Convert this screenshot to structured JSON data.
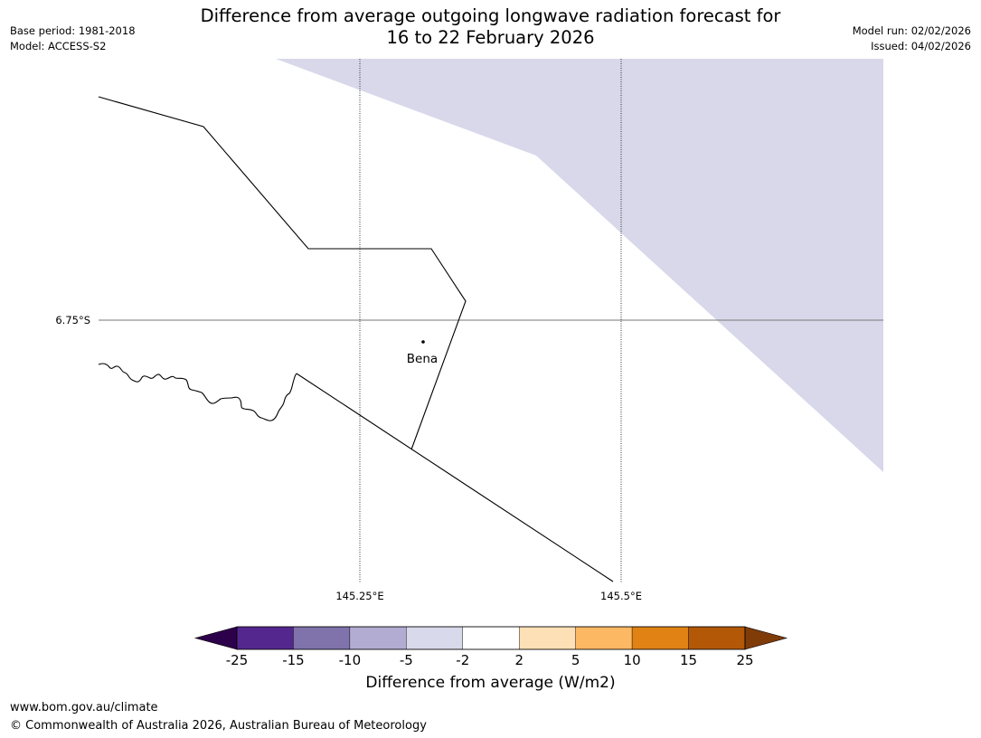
{
  "header": {
    "title_line1": "Difference from average outgoing longwave radiation forecast for",
    "title_line2": "16 to 22 February 2026",
    "base_period": "Base period: 1981-2018",
    "model": "Model: ACCESS-S2",
    "model_run": "Model run: 02/02/2026",
    "issued": "Issued: 04/02/2026"
  },
  "map": {
    "place_label": "Bena",
    "lat_label": "6.75°S",
    "lon_labels": [
      "145.25°E",
      "145.5°E"
    ],
    "anomaly_class_color": "#d8d8ea"
  },
  "colorbar": {
    "title": "Difference from average (W/m2)",
    "ticks": [
      "-25",
      "-15",
      "-10",
      "-5",
      "-2",
      "2",
      "5",
      "10",
      "15",
      "25"
    ],
    "colors": [
      "#54278f",
      "#8073ac",
      "#b2abd2",
      "#d8daeb",
      "#ffffff",
      "#fee0b6",
      "#fdb863",
      "#e08214",
      "#b35806"
    ],
    "under_color": "#2d004b",
    "over_color": "#7f3b08"
  },
  "footer": {
    "url": "www.bom.gov.au/climate",
    "copyright": "© Commonwealth of Australia 2026, Australian Bureau of Meteorology"
  }
}
